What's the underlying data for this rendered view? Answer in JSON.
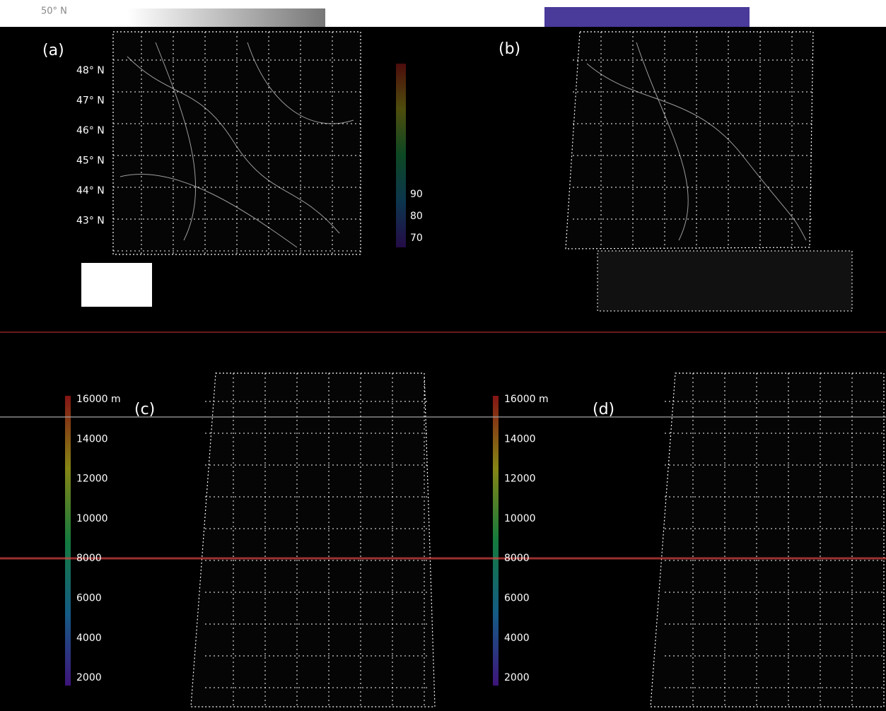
{
  "header": {
    "top_label": "50° N"
  },
  "panels": [
    {
      "label": "(a)",
      "latitudes": [
        "48° N",
        "47° N",
        "46° N",
        "45° N",
        "44° N",
        "43° N"
      ],
      "colorbar": [
        "90",
        "80",
        "70"
      ]
    },
    {
      "label": "(b)"
    },
    {
      "label": "(c)",
      "colorbar": [
        "16000 m",
        "14000",
        "12000",
        "10000",
        "8000",
        "6000",
        "4000",
        "2000"
      ]
    },
    {
      "label": "(d)",
      "colorbar": [
        "16000 m",
        "14000",
        "12000",
        "10000",
        "8000",
        "6000",
        "4000",
        "2000"
      ]
    }
  ]
}
